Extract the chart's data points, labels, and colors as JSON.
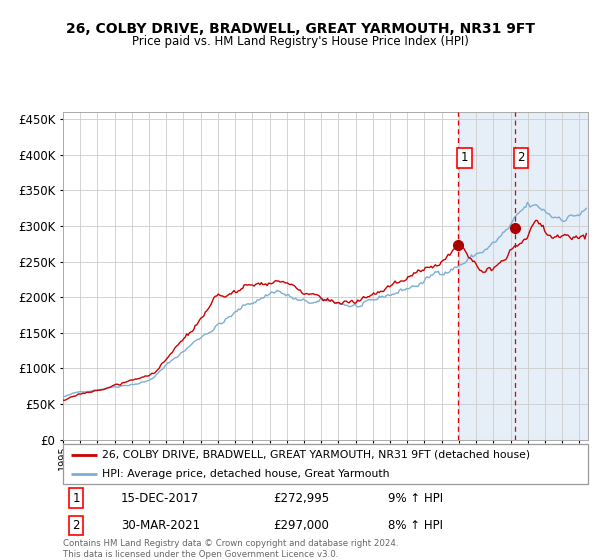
{
  "title1": "26, COLBY DRIVE, BRADWELL, GREAT YARMOUTH, NR31 9FT",
  "title2": "Price paid vs. HM Land Registry's House Price Index (HPI)",
  "legend1": "26, COLBY DRIVE, BRADWELL, GREAT YARMOUTH, NR31 9FT (detached house)",
  "legend2": "HPI: Average price, detached house, Great Yarmouth",
  "marker1_date": "15-DEC-2017",
  "marker1_price": 272995,
  "marker1_label": "9% ↑ HPI",
  "marker2_date": "30-MAR-2021",
  "marker2_price": 297000,
  "marker2_label": "8% ↑ HPI",
  "footer": "Contains HM Land Registry data © Crown copyright and database right 2024.\nThis data is licensed under the Open Government Licence v3.0.",
  "hpi_color": "#7bafd4",
  "property_color": "#cc0000",
  "marker_color": "#aa0000",
  "vline_color": "#dd0000",
  "shade_color": "#dce8f5",
  "hatch_color": "#bbbbbb",
  "grid_color": "#cccccc",
  "background_color": "#ffffff",
  "ylim": [
    0,
    460000
  ],
  "xlim_start": 1995.0,
  "xlim_end": 2025.5,
  "marker1_x": 2017.96,
  "marker2_x": 2021.25,
  "shade_start": 2017.96,
  "shade_end": 2025.5,
  "hatch_start": 2024.42
}
